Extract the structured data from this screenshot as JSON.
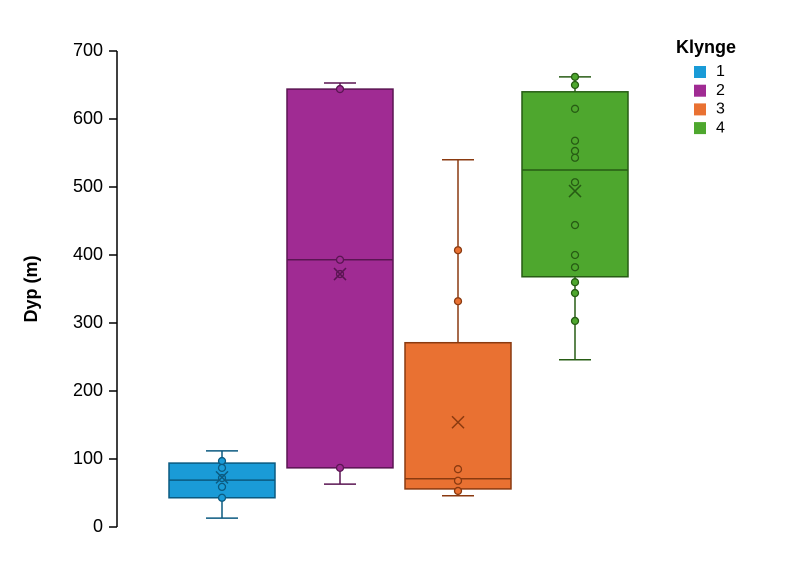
{
  "chart_data": {
    "type": "box",
    "ylabel": "Dyp (m)",
    "ylim": [
      0,
      700
    ],
    "yticks": [
      0,
      100,
      200,
      300,
      400,
      500,
      600,
      700
    ],
    "legend_title": "Klynge",
    "legend": "top-right",
    "series": [
      {
        "name": "1",
        "color": "#1a9bd7",
        "edge_color": "#0b5a80",
        "whisker_low": 13,
        "q1": 43,
        "median": 69,
        "q3": 94,
        "whisker_high": 112,
        "mean": 73,
        "points": [
          97,
          87,
          72,
          59,
          43
        ]
      },
      {
        "name": "2",
        "color": "#a02b93",
        "edge_color": "#5a1552",
        "whisker_low": 63,
        "q1": 87,
        "median": 393,
        "q3": 644,
        "whisker_high": 653,
        "mean": 372,
        "points": [
          87,
          393,
          372,
          644
        ]
      },
      {
        "name": "3",
        "color": "#e97132",
        "edge_color": "#8a3a10",
        "whisker_low": 46,
        "q1": 56,
        "median": 71,
        "q3": 271,
        "whisker_high": 540,
        "mean": 154,
        "points": [
          407,
          332,
          85,
          68,
          53
        ]
      },
      {
        "name": "4",
        "color": "#4ea72e",
        "edge_color": "#275c14",
        "whisker_low": 246,
        "q1": 368,
        "median": 525,
        "q3": 640,
        "whisker_high": 662,
        "mean": 494,
        "points": [
          662,
          650,
          615,
          568,
          553,
          543,
          507,
          444,
          400,
          382,
          360,
          344,
          303
        ]
      }
    ]
  }
}
